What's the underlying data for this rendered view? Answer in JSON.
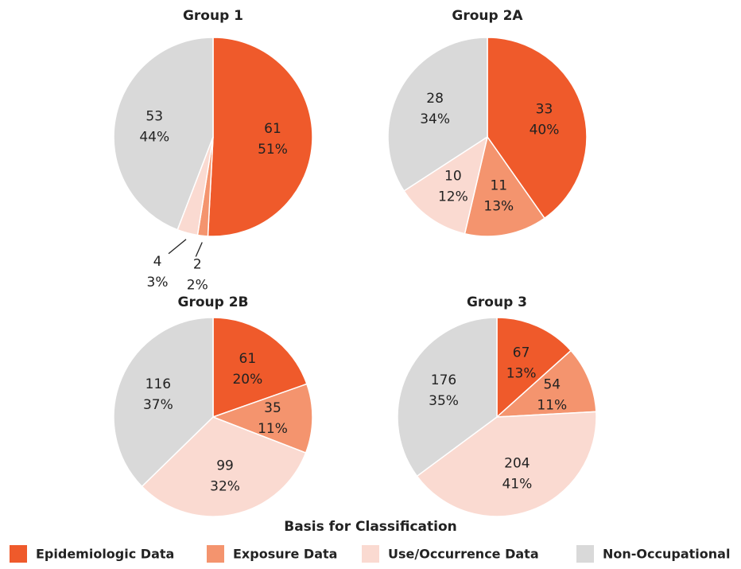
{
  "chart_data": [
    {
      "type": "pie",
      "title": "Group 1",
      "values": [
        61,
        2,
        4,
        53
      ],
      "percent_labels": [
        "51%",
        "2%",
        "3%",
        "44%"
      ]
    },
    {
      "type": "pie",
      "title": "Group 2A",
      "values": [
        33,
        11,
        10,
        28
      ],
      "percent_labels": [
        "40%",
        "13%",
        "12%",
        "34%"
      ]
    },
    {
      "type": "pie",
      "title": "Group 2B",
      "values": [
        61,
        35,
        99,
        116
      ],
      "percent_labels": [
        "20%",
        "11%",
        "32%",
        "37%"
      ]
    },
    {
      "type": "pie",
      "title": "Group 3",
      "values": [
        67,
        54,
        204,
        176
      ],
      "percent_labels": [
        "13%",
        "11%",
        "41%",
        "35%"
      ]
    }
  ],
  "legend": {
    "title": "Basis for Classification",
    "items": [
      {
        "name": "Epidemiologic Data",
        "color": "#ef5a2b"
      },
      {
        "name": "Exposure Data",
        "color": "#f4946e"
      },
      {
        "name": "Use/Occurrence Data",
        "color": "#fadad1"
      },
      {
        "name": "Non-Occupational",
        "color": "#d9d9d9"
      }
    ]
  }
}
